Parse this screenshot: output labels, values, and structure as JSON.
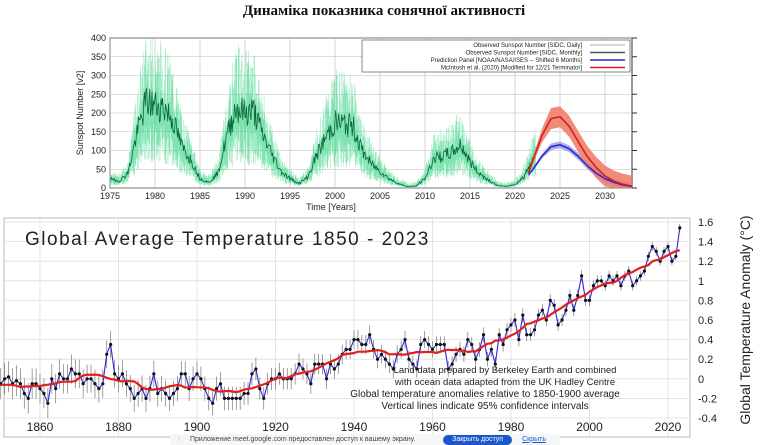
{
  "page_title": "Динаміка показника сонячної активності",
  "chart_data": [
    {
      "type": "line",
      "title": "",
      "xlabel": "Time [Years]",
      "ylabel": "Sunspot Number [v2]",
      "xlim": [
        1975,
        2033
      ],
      "ylim": [
        0,
        400
      ],
      "xticks": [
        "1975",
        "1980",
        "1985",
        "1990",
        "1995",
        "2000",
        "2005",
        "2010",
        "2015",
        "2020",
        "2025",
        "2030"
      ],
      "yticks": [
        "0",
        "50",
        "100",
        "150",
        "200",
        "250",
        "300",
        "350",
        "400"
      ],
      "legend": {
        "placement": "top-right",
        "entries": [
          "Observed Sunspot Number [SIDC, Daily]",
          "Observed Sunspot Number [SIDC, Monthly]",
          "Prediction Panel [NOAA/NASA/ISES -- Shifted 6 Months]",
          "McIntosh et al. (2020) [Modified for 12/21 Terminator]"
        ]
      },
      "observed": {
        "x": [
          1975,
          1976,
          1977,
          1978,
          1979,
          1980,
          1981,
          1982,
          1983,
          1984,
          1985,
          1986,
          1987,
          1988,
          1989,
          1990,
          1991,
          1992,
          1993,
          1994,
          1995,
          1996,
          1997,
          1998,
          1999,
          2000,
          2001,
          2002,
          2003,
          2004,
          2005,
          2006,
          2007,
          2008,
          2009,
          2010,
          2011,
          2012,
          2013,
          2014,
          2015,
          2016,
          2017,
          2018,
          2019,
          2020,
          2021,
          2022
        ],
        "y": [
          24,
          18,
          40,
          145,
          230,
          220,
          215,
          180,
          110,
          75,
          25,
          15,
          40,
          140,
          215,
          200,
          205,
          140,
          90,
          45,
          25,
          12,
          30,
          90,
          135,
          175,
          170,
          165,
          100,
          65,
          45,
          25,
          12,
          4,
          5,
          25,
          80,
          85,
          95,
          115,
          70,
          40,
          22,
          7,
          4,
          9,
          30,
          80
        ]
      },
      "series": [
        {
          "name": "Prediction Panel [NOAA/NASA/ISES]",
          "color": "#2b2bd0",
          "x": [
            2021.5,
            2022,
            2023,
            2024,
            2025,
            2026,
            2027,
            2028,
            2029,
            2030,
            2031,
            2032,
            2033
          ],
          "y": [
            35,
            50,
            85,
            110,
            115,
            105,
            85,
            60,
            40,
            25,
            15,
            8,
            4
          ]
        },
        {
          "name": "McIntosh et al. (2020)",
          "color": "#d02020",
          "x": [
            2021.5,
            2022,
            2023,
            2024,
            2025,
            2026,
            2027,
            2028,
            2029,
            2030,
            2031,
            2032,
            2033
          ],
          "y": [
            40,
            75,
            140,
            185,
            190,
            165,
            125,
            85,
            55,
            32,
            18,
            10,
            5
          ]
        }
      ]
    },
    {
      "type": "line",
      "title": "Global Average Temperature 1850 - 2023",
      "ylabel": "Global Temperature Anomaly (°C)",
      "xlim": [
        1850,
        2030
      ],
      "ylim": [
        -0.4,
        1.6
      ],
      "xticks": [
        "1860",
        "1880",
        "1900",
        "1920",
        "1940",
        "1960",
        "1980",
        "2000",
        "2020"
      ],
      "yticks": [
        "-0.4",
        "-0.2",
        "0",
        "0.2",
        "0.4",
        "0.6",
        "0.8",
        "1",
        "1.2",
        "1.4",
        "1.6"
      ],
      "x_start": 1850,
      "values": [
        -0.05,
        0.0,
        0.02,
        -0.05,
        -0.02,
        -0.05,
        -0.15,
        -0.2,
        -0.05,
        -0.05,
        -0.1,
        -0.15,
        -0.25,
        0.0,
        -0.1,
        0.05,
        0.0,
        0.0,
        0.1,
        0.05,
        0.05,
        -0.05,
        0.0,
        0.0,
        -0.05,
        -0.1,
        -0.05,
        0.25,
        0.35,
        0.05,
        0.0,
        0.05,
        -0.05,
        -0.1,
        -0.2,
        -0.15,
        -0.1,
        -0.2,
        -0.1,
        0.05,
        -0.15,
        -0.1,
        -0.15,
        -0.2,
        -0.15,
        -0.1,
        0.05,
        0.05,
        -0.1,
        0.0,
        0.05,
        0.0,
        -0.1,
        -0.2,
        -0.25,
        -0.1,
        -0.05,
        -0.2,
        -0.2,
        -0.2,
        -0.2,
        -0.2,
        -0.15,
        -0.15,
        0.05,
        0.1,
        -0.1,
        -0.2,
        -0.05,
        0.0,
        0.0,
        0.05,
        0.0,
        0.0,
        0.0,
        0.05,
        0.15,
        0.1,
        0.05,
        -0.05,
        0.15,
        0.15,
        0.15,
        0.0,
        0.15,
        0.1,
        0.15,
        0.25,
        0.3,
        0.3,
        0.4,
        0.4,
        0.35,
        0.35,
        0.45,
        0.3,
        0.2,
        0.25,
        0.2,
        0.15,
        0.1,
        0.25,
        0.3,
        0.4,
        0.2,
        0.15,
        0.1,
        0.35,
        0.4,
        0.35,
        0.3,
        0.35,
        0.35,
        0.35,
        0.1,
        0.15,
        0.25,
        0.3,
        0.25,
        0.4,
        0.35,
        0.2,
        0.3,
        0.45,
        0.2,
        0.3,
        0.15,
        0.45,
        0.35,
        0.5,
        0.55,
        0.6,
        0.4,
        0.65,
        0.45,
        0.45,
        0.5,
        0.65,
        0.7,
        0.6,
        0.8,
        0.75,
        0.55,
        0.6,
        0.7,
        0.85,
        0.7,
        0.85,
        1.05,
        0.8,
        0.8,
        0.95,
        1.0,
        1.0,
        0.95,
        1.05,
        1.0,
        1.05,
        0.95,
        1.05,
        1.1,
        0.95,
        1.0,
        1.05,
        1.1,
        1.25,
        1.35,
        1.3,
        1.2,
        1.3,
        1.35,
        1.2,
        1.25,
        1.54
      ],
      "annotations": [
        "Land data prepared by Berkeley Earth and combined",
        "with ocean data adapted from the UK Hadley Centre",
        "Global temperature anomalies relative to 1850-1900 average",
        "Vertical lines indicate 95% confidence intervals"
      ],
      "colors": {
        "data": "#2b2bd0",
        "trend": "#e02020"
      }
    }
  ],
  "meet_bar": {
    "message": "Приложение meet.google.com предоставлен доступ к вашему экрану.",
    "stop_button": "Закрыть доступ",
    "hide_link": "Скрыть"
  }
}
